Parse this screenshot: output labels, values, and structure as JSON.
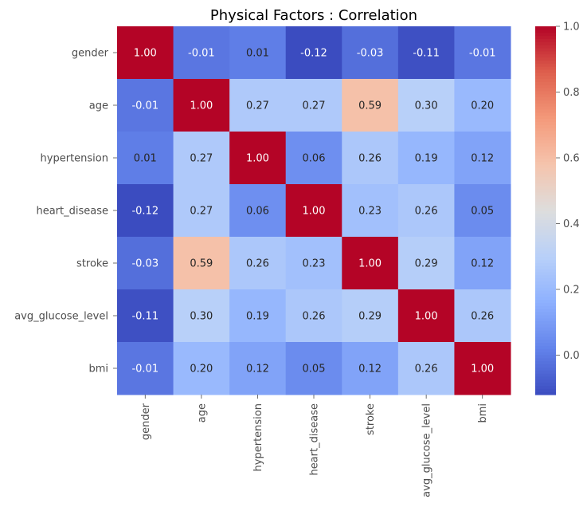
{
  "chart_data": {
    "type": "heatmap",
    "title": "Physical Factors : Correlation",
    "xlabel": "",
    "ylabel": "",
    "rows": [
      "gender",
      "age",
      "hypertension",
      "heart_disease",
      "stroke",
      "avg_glucose_level",
      "bmi"
    ],
    "columns": [
      "gender",
      "age",
      "hypertension",
      "heart_disease",
      "stroke",
      "avg_glucose_level",
      "bmi"
    ],
    "values": [
      [
        1.0,
        -0.01,
        0.01,
        -0.12,
        -0.03,
        -0.11,
        -0.01
      ],
      [
        -0.01,
        1.0,
        0.27,
        0.27,
        0.59,
        0.3,
        0.2
      ],
      [
        0.01,
        0.27,
        1.0,
        0.06,
        0.26,
        0.19,
        0.12
      ],
      [
        -0.12,
        0.27,
        0.06,
        1.0,
        0.23,
        0.26,
        0.05
      ],
      [
        -0.03,
        0.59,
        0.26,
        0.23,
        1.0,
        0.29,
        0.12
      ],
      [
        -0.11,
        0.3,
        0.19,
        0.26,
        0.29,
        1.0,
        0.26
      ],
      [
        -0.01,
        0.2,
        0.12,
        0.05,
        0.12,
        0.26,
        1.0
      ]
    ],
    "cell_labels": [
      [
        "1.00",
        "-0.01",
        "0.01",
        "-0.12",
        "-0.03",
        "-0.11",
        "-0.01"
      ],
      [
        "-0.01",
        "1.00",
        "0.27",
        "0.27",
        "0.59",
        "0.30",
        "0.20"
      ],
      [
        "0.01",
        "0.27",
        "1.00",
        "0.06",
        "0.26",
        "0.19",
        "0.12"
      ],
      [
        "-0.12",
        "0.27",
        "0.06",
        "1.00",
        "0.23",
        "0.26",
        "0.05"
      ],
      [
        "-0.03",
        "0.59",
        "0.26",
        "0.23",
        "1.00",
        "0.29",
        "0.12"
      ],
      [
        "-0.11",
        "0.30",
        "0.19",
        "0.26",
        "0.29",
        "1.00",
        "0.26"
      ],
      [
        "-0.01",
        "0.20",
        "0.12",
        "0.05",
        "0.12",
        "0.26",
        "1.00"
      ]
    ],
    "colormap": "coolwarm",
    "vmin": -0.12,
    "vmax": 1.0,
    "colorbar": {
      "ticks": [
        0.0,
        0.2,
        0.4,
        0.6,
        0.8,
        1.0
      ],
      "tick_labels": [
        "0.0",
        "0.2",
        "0.4",
        "0.6",
        "0.8",
        "1.0"
      ],
      "placement": "right"
    },
    "grid": false
  }
}
